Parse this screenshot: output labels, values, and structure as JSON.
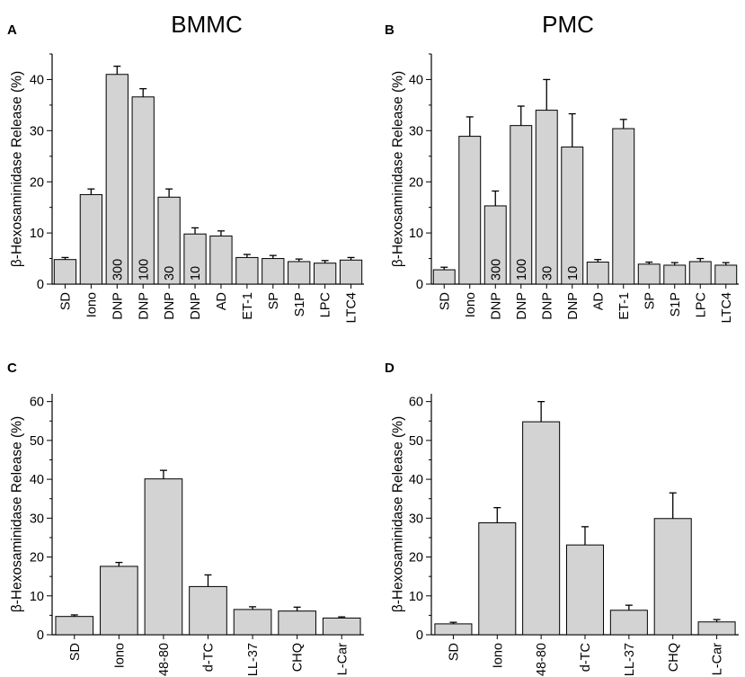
{
  "chart_data": [
    {
      "panel_letter": "A",
      "title": "BMMC",
      "type": "bar",
      "ylabel": "β-Hexosaminidase Release (%)",
      "xlabel": "",
      "ylim": [
        0,
        45
      ],
      "yticks": [
        0,
        10,
        20,
        30,
        40
      ],
      "categories": [
        "SD",
        "Iono",
        "DNP",
        "DNP",
        "DNP",
        "DNP",
        "AD",
        "ET-1",
        "SP",
        "S1P",
        "LPC",
        "LTC4"
      ],
      "bar_labels": [
        "",
        "",
        "300",
        "100",
        "30",
        "10",
        "",
        "",
        "",
        "",
        "",
        ""
      ],
      "values": [
        4.8,
        17.5,
        41.0,
        36.6,
        17.0,
        9.8,
        9.4,
        5.2,
        5.0,
        4.4,
        4.1,
        4.7
      ],
      "errors": [
        0.4,
        1.1,
        1.6,
        1.6,
        1.6,
        1.2,
        1.0,
        0.6,
        0.6,
        0.5,
        0.5,
        0.5
      ]
    },
    {
      "panel_letter": "B",
      "title": "PMC",
      "type": "bar",
      "ylabel": "β-Hexosaminidase Release (%)",
      "xlabel": "",
      "ylim": [
        0,
        45
      ],
      "yticks": [
        0,
        10,
        20,
        30,
        40
      ],
      "categories": [
        "SD",
        "Iono",
        "DNP",
        "DNP",
        "DNP",
        "DNP",
        "AD",
        "ET-1",
        "SP",
        "S1P",
        "LPC",
        "LTC4"
      ],
      "bar_labels": [
        "",
        "",
        "300",
        "100",
        "30",
        "10",
        "",
        "",
        "",
        "",
        "",
        ""
      ],
      "values": [
        2.8,
        28.9,
        15.3,
        31.0,
        34.0,
        26.8,
        4.3,
        30.4,
        3.9,
        3.7,
        4.4,
        3.7
      ],
      "errors": [
        0.5,
        3.8,
        2.9,
        3.8,
        6.0,
        6.5,
        0.5,
        1.8,
        0.4,
        0.5,
        0.6,
        0.5
      ]
    },
    {
      "panel_letter": "C",
      "title": "",
      "type": "bar",
      "ylabel": "β-Hexosaminidase Release (%)",
      "xlabel": "",
      "ylim": [
        0,
        62
      ],
      "yticks": [
        0,
        10,
        20,
        30,
        40,
        50,
        60
      ],
      "categories": [
        "SD",
        "Iono",
        "48-80",
        "d-TC",
        "LL-37",
        "CHQ",
        "L-Car"
      ],
      "bar_labels": [
        "",
        "",
        "",
        "",
        "",
        "",
        ""
      ],
      "values": [
        4.7,
        17.6,
        40.1,
        12.4,
        6.5,
        6.1,
        4.3
      ],
      "errors": [
        0.4,
        1.0,
        2.2,
        3.0,
        0.7,
        1.0,
        0.3
      ]
    },
    {
      "panel_letter": "D",
      "title": "",
      "type": "bar",
      "ylabel": "β-Hexosaminidase Release (%)",
      "xlabel": "",
      "ylim": [
        0,
        62
      ],
      "yticks": [
        0,
        10,
        20,
        30,
        40,
        50,
        60
      ],
      "categories": [
        "SD",
        "Iono",
        "48-80",
        "d-TC",
        "LL-37",
        "CHQ",
        "L-Car"
      ],
      "bar_labels": [
        "",
        "",
        "",
        "",
        "",
        "",
        ""
      ],
      "values": [
        2.8,
        28.8,
        54.8,
        23.1,
        6.3,
        29.9,
        3.3
      ],
      "errors": [
        0.4,
        3.9,
        5.2,
        4.7,
        1.3,
        6.6,
        0.6
      ]
    }
  ]
}
